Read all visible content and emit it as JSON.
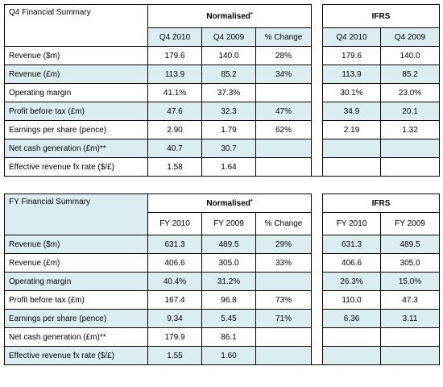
{
  "q4": {
    "title": "Q4 Financial Summary",
    "normalised": "Normalised",
    "norm_mark": "*",
    "ifrs": "IFRS",
    "cols": [
      "Q4 2010",
      "Q4 2009",
      "% Change",
      "Q4 2010",
      "Q4 2009"
    ],
    "rows": [
      {
        "label": "Revenue ($m)",
        "v": [
          "179.6",
          "140.0",
          "28%",
          "179.6",
          "140.0"
        ]
      },
      {
        "label": "Revenue (£m)",
        "v": [
          "113.9",
          "85.2",
          "34%",
          "113.9",
          "85.2"
        ]
      },
      {
        "label": "Operating margin",
        "v": [
          "41.1%",
          "37.3%",
          "",
          "30.1%",
          "23.0%"
        ]
      },
      {
        "label": "Profit before tax (£m)",
        "v": [
          "47.6",
          "32.3",
          "47%",
          "34.9",
          "20.1"
        ]
      },
      {
        "label": "Earnings per share (pence)",
        "v": [
          "2.90",
          "1.79",
          "62%",
          "2.19",
          "1.32"
        ]
      },
      {
        "label": "Net cash generation (£m)**",
        "v": [
          "40.7",
          "30.7",
          "",
          "",
          ""
        ]
      },
      {
        "label": "Effective revenue fx rate ($/£)",
        "v": [
          "1.58",
          "1.64",
          "",
          "",
          ""
        ]
      }
    ]
  },
  "fy": {
    "title": "FY Financial Summary",
    "normalised": "Normalised",
    "norm_mark": "*",
    "ifrs": "IFRS",
    "cols": [
      "FY 2010",
      "FY 2009",
      "% Change",
      "FY 2010",
      "FY 2009"
    ],
    "rows": [
      {
        "label": "Revenue ($m)",
        "v": [
          "631.3",
          "489.5",
          "29%",
          "631.3",
          "489.5"
        ]
      },
      {
        "label": "Revenue (£m)",
        "v": [
          "406.6",
          "305.0",
          "33%",
          "406.6",
          "305.0"
        ]
      },
      {
        "label": "Operating margin",
        "v": [
          "40.4%",
          "31.2%",
          "",
          "26.3%",
          "15.0%"
        ]
      },
      {
        "label": "Profit before tax (£m)",
        "v": [
          "167.4",
          "96.8",
          "73%",
          "110.0",
          "47.3"
        ]
      },
      {
        "label": "Earnings per share (pence)",
        "v": [
          "9.34",
          "5.45",
          "71%",
          "6.36",
          "3.11"
        ]
      },
      {
        "label": "Net cash generation (£m)**",
        "v": [
          "179.9",
          "86.1",
          "",
          "",
          ""
        ]
      },
      {
        "label": "Effective revenue fx rate ($/£)",
        "v": [
          "1.55",
          "1.60",
          "",
          "",
          ""
        ]
      }
    ]
  },
  "colors": {
    "shade": "#dcedf2"
  }
}
